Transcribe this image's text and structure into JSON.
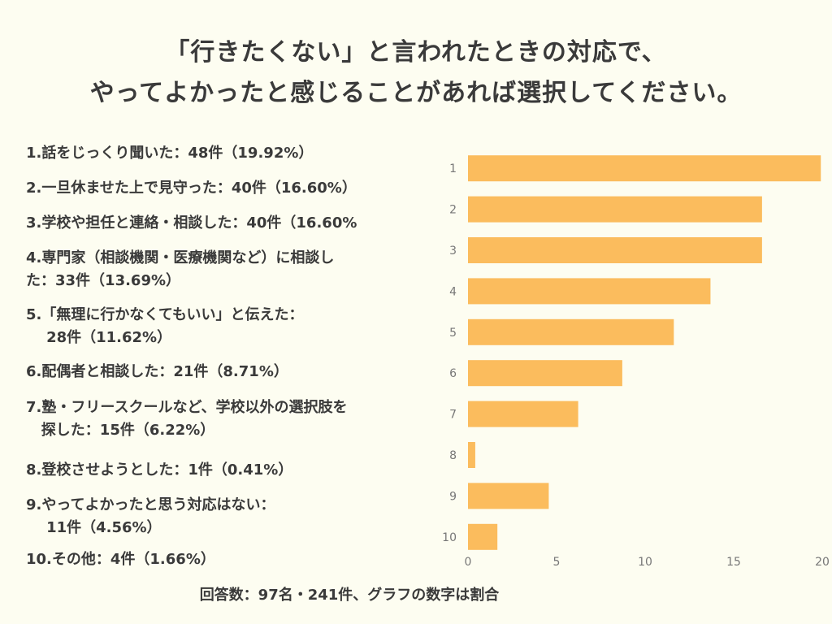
{
  "title_lines": [
    "「行きたくない」と言われたときの対応で、",
    "やってよかったと感じることがあれば選択してください。"
  ],
  "legend": [
    "1.話をじっくり聞いた：48件（19.92%）",
    "2.一旦休ませた上で見守った：40件（16.60%）",
    "3.学校や担任と連絡・相談した：40件（16.60%",
    "4.専門家（相談機関・医療機関など）に相談し\nた：33件（13.69%）",
    "5.「無理に行かなくてもいい」と伝えた：\n    28件（11.62%）",
    "6.配偶者と相談した：21件（8.71%）",
    "7.塾・フリースクールなど、学校以外の選択肢を\n   探した：15件（6.22%）",
    "8.登校させようとした：1件（0.41%）",
    "9.やってよかったと思う対応はない：\n    11件（4.56%）",
    "10.その他：4件（1.66%）"
  ],
  "footer": "回答数：97名・241件、グラフの数字は割合",
  "colors": {
    "bar": "#fbbc5d",
    "background": "#fdfdf1",
    "axis_text": "#777777"
  },
  "chart_data": {
    "type": "bar",
    "orientation": "horizontal",
    "categories": [
      "1",
      "2",
      "3",
      "4",
      "5",
      "6",
      "7",
      "8",
      "9",
      "10"
    ],
    "values": [
      19.92,
      16.6,
      16.6,
      13.69,
      11.62,
      8.71,
      6.22,
      0.41,
      4.56,
      1.66
    ],
    "xlim": [
      0,
      20
    ],
    "xticks": [
      0,
      5,
      10,
      15,
      20
    ],
    "title": "「行きたくない」と言われたときの対応で、やってよかったと感じることがあれば選択してください。",
    "xlabel": "",
    "ylabel": "",
    "grid": false
  }
}
